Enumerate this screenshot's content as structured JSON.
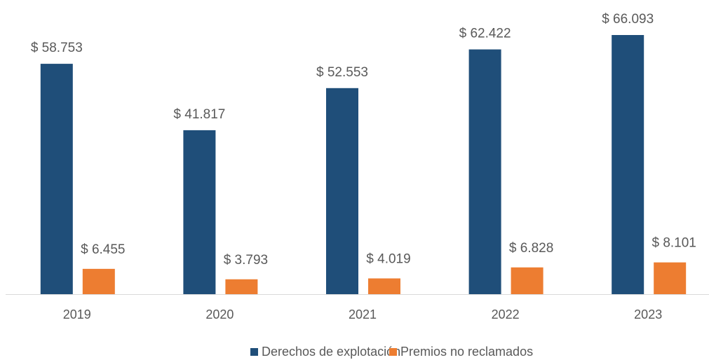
{
  "chart_data": {
    "type": "bar",
    "categories": [
      "2019",
      "2020",
      "2021",
      "2022",
      "2023"
    ],
    "series": [
      {
        "name": "Derechos de explotación",
        "color": "#1f4e79",
        "values": [
          58753,
          41817,
          52553,
          62422,
          66093
        ],
        "value_labels": [
          "$ 58.753",
          "$ 41.817",
          "$ 52.553",
          "$ 62.422",
          "$ 66.093"
        ]
      },
      {
        "name": "Premios no reclamados",
        "color": "#ed7d31",
        "values": [
          6455,
          3793,
          4019,
          6828,
          8101
        ],
        "value_labels": [
          "$ 6.455",
          "$ 3.793",
          "$ 4.019",
          "$ 6.828",
          "$ 8.101"
        ]
      }
    ],
    "legend": "bottom"
  }
}
